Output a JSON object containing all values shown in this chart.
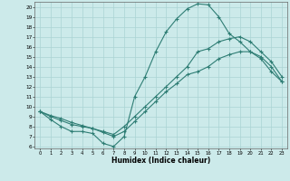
{
  "xlabel": "Humidex (Indice chaleur)",
  "color": "#2e7d74",
  "bg_color": "#cceaea",
  "grid_color": "#aad4d4",
  "xlim": [
    -0.5,
    23.5
  ],
  "ylim": [
    5.8,
    20.5
  ],
  "xticks": [
    0,
    1,
    2,
    3,
    4,
    5,
    6,
    7,
    8,
    9,
    10,
    11,
    12,
    13,
    14,
    15,
    16,
    17,
    18,
    19,
    20,
    21,
    22,
    23
  ],
  "yticks": [
    6,
    7,
    8,
    9,
    10,
    11,
    12,
    13,
    14,
    15,
    16,
    17,
    18,
    19,
    20
  ],
  "line1_x": [
    0,
    1,
    2,
    3,
    4,
    5,
    6,
    7,
    8,
    9,
    10,
    11,
    12,
    13,
    14,
    15,
    16,
    17,
    18,
    19,
    20,
    21,
    22,
    23
  ],
  "line1_y": [
    9.5,
    8.7,
    8.0,
    7.5,
    7.5,
    7.3,
    6.3,
    6.0,
    7.0,
    11.0,
    13.0,
    15.5,
    17.5,
    18.8,
    19.8,
    20.3,
    20.2,
    19.0,
    17.3,
    16.5,
    15.5,
    14.8,
    13.5,
    12.5
  ],
  "line2_x": [
    0,
    1,
    2,
    3,
    4,
    5,
    6,
    7,
    8,
    9,
    10,
    11,
    12,
    13,
    14,
    15,
    16,
    17,
    18,
    19,
    20,
    21,
    22,
    23
  ],
  "line2_y": [
    9.5,
    9.1,
    8.8,
    8.4,
    8.1,
    7.8,
    7.5,
    7.2,
    8.0,
    9.0,
    10.0,
    11.0,
    12.0,
    13.0,
    14.0,
    15.5,
    15.8,
    16.5,
    16.8,
    17.0,
    16.5,
    15.5,
    14.5,
    13.0
  ],
  "line3_x": [
    0,
    1,
    2,
    3,
    4,
    5,
    6,
    7,
    8,
    9,
    10,
    11,
    12,
    13,
    14,
    15,
    16,
    17,
    18,
    19,
    20,
    21,
    22,
    23
  ],
  "line3_y": [
    9.5,
    9.0,
    8.6,
    8.2,
    8.0,
    7.8,
    7.4,
    7.0,
    7.5,
    8.5,
    9.5,
    10.5,
    11.5,
    12.3,
    13.2,
    13.5,
    14.0,
    14.8,
    15.2,
    15.5,
    15.5,
    15.0,
    14.0,
    12.5
  ]
}
